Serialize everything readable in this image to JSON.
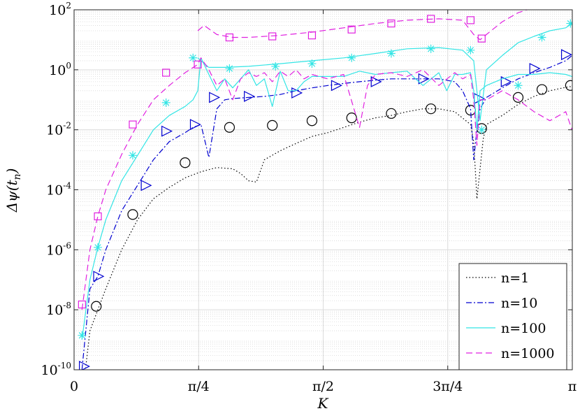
{
  "chart_data": {
    "type": "line",
    "title": "",
    "xlabel": "K",
    "ylabel": "Δψ(t_n)",
    "xscale": "linear",
    "yscale": "log",
    "xlim": [
      0,
      3.14159
    ],
    "ylim": [
      1e-10,
      100
    ],
    "grid": true,
    "minor_grid": true,
    "legend_placement": "bottom-right",
    "x_ticks": [
      {
        "value": 0,
        "label": "0"
      },
      {
        "value": 0.7854,
        "label": "π/4"
      },
      {
        "value": 1.5708,
        "label": "π/2"
      },
      {
        "value": 2.3562,
        "label": "3π/4"
      },
      {
        "value": 3.14159,
        "label": "π"
      }
    ],
    "y_ticks": [
      {
        "value": 1e-10,
        "base": "10",
        "exp": "-10"
      },
      {
        "value": 1e-08,
        "base": "10",
        "exp": "-8"
      },
      {
        "value": 1e-06,
        "base": "10",
        "exp": "-6"
      },
      {
        "value": 0.0001,
        "base": "10",
        "exp": "-4"
      },
      {
        "value": 0.01,
        "base": "10",
        "exp": "-2"
      },
      {
        "value": 1,
        "base": "10",
        "exp": "0"
      },
      {
        "value": 100,
        "base": "10",
        "exp": "2"
      }
    ],
    "series": [
      {
        "name": "n=1",
        "color": "#000000",
        "line_style": "dotted",
        "marker": "circle",
        "x": [
          0.05,
          0.1,
          0.15,
          0.2,
          0.3,
          0.4,
          0.5,
          0.6,
          0.7,
          0.8,
          0.9,
          1.0,
          1.05,
          1.1,
          1.15,
          1.2,
          1.3,
          1.4,
          1.5,
          1.6,
          1.7,
          1.8,
          1.9,
          2.0,
          2.1,
          2.2,
          2.3,
          2.4,
          2.5,
          2.52,
          2.54,
          2.56,
          2.58,
          2.6,
          2.7,
          2.8,
          2.9,
          3.0,
          3.1,
          3.14
        ],
        "y": [
          1e-11,
          2e-09,
          1e-08,
          5e-08,
          1e-06,
          1e-05,
          5e-05,
          0.00012,
          0.00025,
          0.0004,
          0.00055,
          0.0005,
          0.00035,
          0.0002,
          0.00018,
          0.001,
          0.002,
          0.0035,
          0.006,
          0.008,
          0.012,
          0.018,
          0.025,
          0.03,
          0.04,
          0.05,
          0.05,
          0.04,
          0.015,
          0.004,
          5e-05,
          0.0005,
          0.005,
          0.015,
          0.03,
          0.07,
          0.13,
          0.2,
          0.26,
          0.28
        ],
        "marker_x": [
          0.14,
          0.37,
          0.7,
          0.98,
          1.25,
          1.5,
          1.75,
          2.0,
          2.25,
          2.5,
          2.57,
          2.8,
          2.95,
          3.13
        ],
        "marker_y": [
          1.3e-08,
          1.5e-05,
          0.0008,
          0.012,
          0.014,
          0.02,
          0.025,
          0.035,
          0.05,
          0.045,
          0.011,
          0.12,
          0.22,
          0.3
        ]
      },
      {
        "name": "n=10",
        "color": "#0000d0",
        "line_style": "dashdot",
        "marker": "triangle-right",
        "x": [
          0.05,
          0.1,
          0.15,
          0.2,
          0.3,
          0.4,
          0.5,
          0.6,
          0.7,
          0.75,
          0.8,
          0.85,
          0.9,
          0.95,
          1.0,
          1.1,
          1.2,
          1.3,
          1.4,
          1.5,
          1.6,
          1.7,
          1.8,
          1.9,
          2.0,
          2.1,
          2.2,
          2.3,
          2.4,
          2.45,
          2.5,
          2.52,
          2.54,
          2.56,
          2.6,
          2.7,
          2.8,
          2.9,
          3.0,
          3.1,
          3.14
        ],
        "y": [
          1e-10,
          5e-08,
          1.3e-07,
          1e-06,
          2e-05,
          0.00014,
          0.001,
          0.004,
          0.008,
          0.012,
          0.015,
          0.0012,
          0.05,
          0.1,
          0.11,
          0.12,
          0.13,
          0.15,
          0.2,
          0.25,
          0.3,
          0.35,
          0.4,
          0.45,
          0.5,
          0.5,
          0.5,
          0.5,
          0.4,
          0.2,
          0.05,
          0.001,
          0.01,
          0.05,
          0.12,
          0.25,
          0.5,
          0.8,
          1.2,
          2,
          3
        ],
        "marker_x": [
          0.06,
          0.15,
          0.45,
          0.58,
          0.76,
          0.88,
          1.1,
          1.4,
          1.65,
          1.9,
          2.2,
          2.55,
          2.72,
          2.9,
          3.1
        ],
        "marker_y": [
          1.3e-10,
          1.3e-07,
          0.00014,
          0.009,
          0.015,
          0.12,
          0.13,
          0.17,
          0.3,
          0.4,
          0.5,
          0.11,
          0.4,
          1.1,
          3.2
        ]
      },
      {
        "name": "n=100",
        "color": "#33e5e5",
        "line_style": "solid",
        "marker": "asterisk",
        "x": [
          0.05,
          0.1,
          0.15,
          0.2,
          0.3,
          0.4,
          0.5,
          0.6,
          0.7,
          0.75,
          0.78,
          0.8,
          0.85,
          0.9,
          0.95,
          1.0,
          1.05,
          1.1,
          1.15,
          1.2,
          1.25,
          1.3,
          1.35,
          1.4,
          1.45,
          1.5,
          1.6,
          1.7,
          1.8,
          1.9,
          2.0,
          2.1,
          2.2,
          2.3,
          2.35,
          2.4,
          2.45,
          2.5,
          2.52,
          2.54,
          2.56,
          2.6,
          2.7,
          2.8,
          2.9,
          3.0,
          3.1,
          3.14
        ],
        "y": [
          1e-09,
          1e-07,
          1.2e-06,
          1e-05,
          0.0002,
          0.0014,
          0.01,
          0.03,
          0.06,
          0.1,
          0.2,
          2.5,
          0.7,
          0.2,
          0.5,
          0.25,
          0.5,
          1,
          0.3,
          0.5,
          0.06,
          0.9,
          0.2,
          0.2,
          0.4,
          0.6,
          0.6,
          0.6,
          0.9,
          0.7,
          0.8,
          0.9,
          0.3,
          0.8,
          0.2,
          0.7,
          0.7,
          0.8,
          0.2,
          0.01,
          0.2,
          0.3,
          0.5,
          0.7,
          0.7,
          0.8,
          0.7,
          0.6
        ],
        "upper_x": [
          0.78,
          0.85,
          0.95,
          1.1,
          1.3,
          1.5,
          1.7,
          1.9,
          2.1,
          2.3,
          2.45,
          2.52,
          2.56,
          2.6,
          2.7,
          2.8,
          2.9,
          3.0,
          3.1,
          3.14
        ],
        "upper_y": [
          2.5,
          1.2,
          1.2,
          1.3,
          1.6,
          2,
          2.5,
          3.5,
          5,
          5.5,
          4.5,
          2,
          0.02,
          1,
          3,
          8,
          13,
          20,
          25,
          35
        ],
        "marker_x": [
          0.05,
          0.15,
          0.37,
          0.58,
          0.75,
          0.98,
          1.27,
          1.5,
          1.75,
          2.0,
          2.25,
          2.5,
          2.57,
          2.8,
          2.95,
          3.13
        ],
        "marker_y": [
          1.4e-09,
          1.2e-06,
          0.0014,
          0.08,
          2.5,
          1.1,
          1.3,
          1.6,
          2.5,
          3.5,
          5,
          4.5,
          0.01,
          0.3,
          12,
          35
        ]
      },
      {
        "name": "n=1000",
        "color": "#e020e0",
        "line_style": "dashed",
        "marker": "square",
        "x": [
          0.05,
          0.1,
          0.15,
          0.2,
          0.3,
          0.4,
          0.5,
          0.6,
          0.7,
          0.78,
          0.8,
          0.85,
          0.9,
          0.95,
          1.0,
          1.05,
          1.1,
          1.15,
          1.2,
          1.25,
          1.3,
          1.35,
          1.4,
          1.45,
          1.5,
          1.6,
          1.7,
          1.8,
          1.85,
          1.9,
          2.0,
          2.1,
          2.2,
          2.3,
          2.4,
          2.45,
          2.5,
          2.52,
          2.54,
          2.56,
          2.6,
          2.7,
          2.8,
          2.9,
          3.0,
          3.1,
          3.14
        ],
        "y": [
          1e-08,
          1e-06,
          1.3e-05,
          0.0001,
          0.0015,
          0.015,
          0.1,
          0.3,
          0.8,
          1.5,
          2.5,
          1,
          0.3,
          0.5,
          0.1,
          0.5,
          0.8,
          0.6,
          0.8,
          0.4,
          0.9,
          0.6,
          1,
          0.5,
          0.7,
          0.5,
          0.7,
          0.012,
          0.3,
          0.7,
          0.8,
          0.6,
          1,
          0.3,
          0.8,
          0.5,
          0.7,
          0.1,
          0.003,
          0.1,
          0.1,
          0.2,
          0.1,
          0.04,
          0.02,
          0.04,
          0.01
        ],
        "upper_x": [
          0.78,
          0.82,
          0.9,
          1.0,
          1.1,
          1.3,
          1.5,
          1.7,
          1.9,
          2.1,
          2.3,
          2.45,
          2.52,
          2.56,
          2.6,
          2.7,
          2.8,
          2.9,
          3.0,
          3.14
        ],
        "upper_y": [
          20,
          30,
          15,
          12,
          12,
          14,
          18,
          25,
          35,
          45,
          50,
          45,
          15,
          10,
          15,
          40,
          80,
          120,
          150,
          200
        ],
        "marker_x": [
          0.05,
          0.15,
          0.37,
          0.58,
          0.78,
          0.98,
          1.25,
          1.5,
          1.75,
          2.0,
          2.25,
          2.5,
          2.57
        ],
        "marker_y": [
          1.5e-08,
          1.3e-05,
          0.015,
          0.8,
          1.5,
          12,
          13,
          14,
          22,
          35,
          50,
          45,
          11
        ]
      }
    ]
  }
}
